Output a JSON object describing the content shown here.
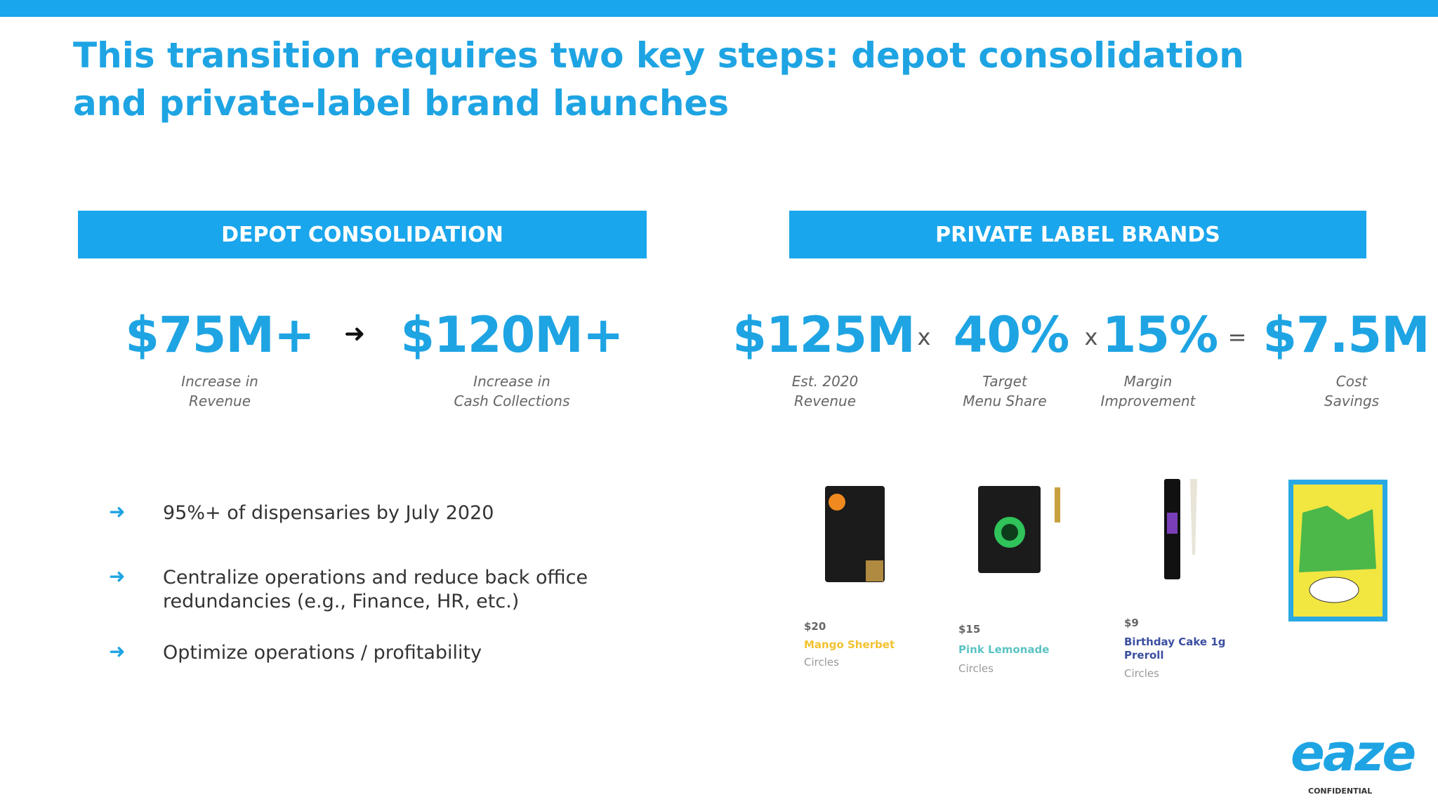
{
  "header": {
    "title_lines": [
      "This transition requires two key steps: depot consolidation",
      "and private-label brand launches"
    ]
  },
  "depot": {
    "heading": "DEPOT CONSOLIDATION",
    "metrics": [
      {
        "value": "$75M+",
        "label_lines": [
          "Increase in",
          "Revenue"
        ]
      },
      {
        "value": "$120M+",
        "label_lines": [
          "Increase in",
          "Cash Collections"
        ]
      }
    ],
    "bullets": [
      "95%+ of dispensaries by July 2020",
      "Centralize operations and reduce back office redundancies (e.g., Finance, HR, etc.)",
      "Optimize operations / profitability"
    ]
  },
  "brands": {
    "heading": "PRIVATE LABEL BRANDS",
    "metrics": [
      {
        "value": "$125M",
        "label_lines": [
          "Est. 2020",
          "Revenue"
        ]
      },
      {
        "value": "40%",
        "label_lines": [
          "Target",
          "Menu Share"
        ]
      },
      {
        "value": "15%",
        "label_lines": [
          "Margin",
          "Improvement"
        ]
      },
      {
        "value": "$7.5M",
        "label_lines": [
          "Cost",
          "Savings"
        ]
      }
    ],
    "operators": [
      "x",
      "x",
      "="
    ],
    "products": [
      {
        "price": "$20",
        "name": "Mango Sherbet",
        "brand": "Circles"
      },
      {
        "price": "$15",
        "name": "Pink Lemonade",
        "brand": "Circles"
      },
      {
        "price": "$9",
        "name": "Birthday Cake 1g Preroll",
        "brand": "Circles"
      }
    ]
  },
  "footer": {
    "logo": "eaze",
    "note": "CONFIDENTIAL"
  }
}
